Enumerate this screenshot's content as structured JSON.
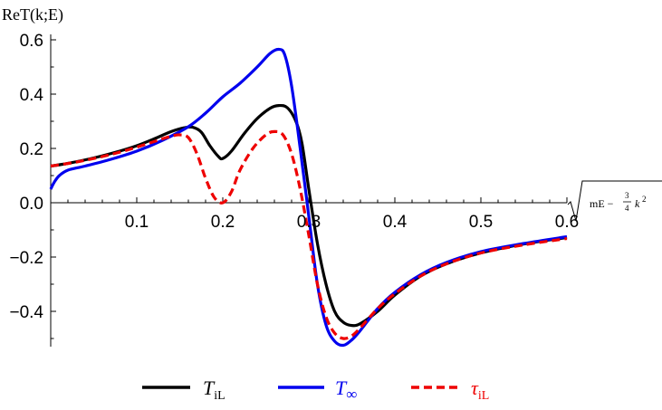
{
  "chart_data": {
    "type": "line",
    "title": "",
    "ylabel": "ReT(k;E)",
    "xlabel": {
      "radicand": "mE − ",
      "frac_num": "3",
      "frac_den": "4",
      "var": "k",
      "exp": "2"
    },
    "xlim": [
      0,
      0.6
    ],
    "ylim": [
      -0.53,
      0.62
    ],
    "xticks": [
      0.1,
      0.2,
      0.3,
      0.4,
      0.5,
      0.6
    ],
    "xtick_labels": [
      "0.1",
      "0.2",
      "0.3",
      "0.4",
      "0.5",
      "0.6"
    ],
    "yticks": [
      -0.4,
      -0.2,
      0.0,
      0.2,
      0.4,
      0.6
    ],
    "ytick_labels": [
      "−0.4",
      "−0.2",
      "0.0",
      "0.2",
      "0.4",
      "0.6"
    ],
    "grid": false,
    "legend_position": "bottom",
    "series": [
      {
        "name_main": "T",
        "name_sub": "iL",
        "color": "#000000",
        "dash": "solid",
        "x": [
          0.0,
          0.02,
          0.05,
          0.08,
          0.1,
          0.12,
          0.14,
          0.155,
          0.165,
          0.175,
          0.185,
          0.195,
          0.2,
          0.21,
          0.225,
          0.24,
          0.255,
          0.265,
          0.275,
          0.285,
          0.292,
          0.3,
          0.31,
          0.32,
          0.33,
          0.34,
          0.35,
          0.36,
          0.38,
          0.4,
          0.43,
          0.46,
          0.5,
          0.55,
          0.6
        ],
        "y": [
          0.135,
          0.145,
          0.165,
          0.19,
          0.21,
          0.235,
          0.262,
          0.276,
          0.278,
          0.26,
          0.21,
          0.17,
          0.163,
          0.19,
          0.255,
          0.31,
          0.348,
          0.358,
          0.35,
          0.3,
          0.22,
          0.05,
          -0.15,
          -0.3,
          -0.4,
          -0.44,
          -0.452,
          -0.445,
          -0.4,
          -0.34,
          -0.27,
          -0.225,
          -0.185,
          -0.152,
          -0.128
        ]
      },
      {
        "name_main": "T",
        "name_sub": "∞",
        "color": "#0000ee",
        "dash": "solid",
        "x": [
          0.0,
          0.004,
          0.01,
          0.02,
          0.04,
          0.07,
          0.1,
          0.13,
          0.16,
          0.18,
          0.2,
          0.22,
          0.24,
          0.255,
          0.265,
          0.272,
          0.28,
          0.29,
          0.3,
          0.31,
          0.32,
          0.33,
          0.34,
          0.35,
          0.36,
          0.38,
          0.4,
          0.43,
          0.46,
          0.5,
          0.55,
          0.6
        ],
        "y": [
          0.05,
          0.075,
          0.1,
          0.12,
          0.135,
          0.16,
          0.19,
          0.23,
          0.28,
          0.33,
          0.39,
          0.44,
          0.5,
          0.55,
          0.565,
          0.545,
          0.43,
          0.2,
          -0.05,
          -0.3,
          -0.45,
          -0.51,
          -0.525,
          -0.505,
          -0.47,
          -0.39,
          -0.33,
          -0.265,
          -0.22,
          -0.18,
          -0.15,
          -0.125
        ]
      },
      {
        "name_main": "τ",
        "name_sub": "iL",
        "color": "#ee0000",
        "dash": "dashed",
        "x": [
          0.0,
          0.03,
          0.06,
          0.09,
          0.12,
          0.14,
          0.15,
          0.16,
          0.17,
          0.18,
          0.19,
          0.2,
          0.21,
          0.22,
          0.235,
          0.25,
          0.26,
          0.27,
          0.28,
          0.29,
          0.3,
          0.31,
          0.32,
          0.33,
          0.34,
          0.35,
          0.36,
          0.38,
          0.4,
          0.43,
          0.46,
          0.5,
          0.55,
          0.6
        ],
        "y": [
          0.135,
          0.15,
          0.17,
          0.195,
          0.225,
          0.245,
          0.25,
          0.24,
          0.18,
          0.09,
          0.02,
          0.0,
          0.04,
          0.12,
          0.2,
          0.25,
          0.262,
          0.25,
          0.18,
          0.05,
          -0.12,
          -0.3,
          -0.42,
          -0.48,
          -0.5,
          -0.49,
          -0.46,
          -0.39,
          -0.335,
          -0.27,
          -0.225,
          -0.185,
          -0.155,
          -0.132
        ]
      }
    ]
  }
}
